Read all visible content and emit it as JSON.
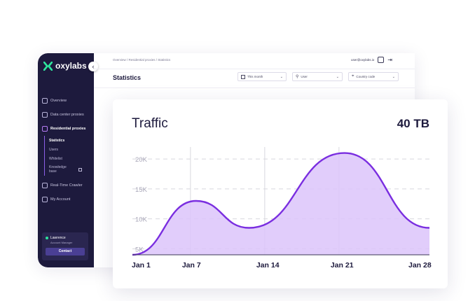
{
  "sidebar": {
    "logo_text": "oxylabs",
    "collapse_glyph": "‹",
    "items": [
      {
        "label": "Overview",
        "icon": "home-icon"
      },
      {
        "label": "Data center proxies",
        "icon": "server-icon"
      },
      {
        "label": "Residential proxies",
        "icon": "house-icon"
      }
    ],
    "sub_items": [
      {
        "label": "Statistics"
      },
      {
        "label": "Users"
      },
      {
        "label": "Whitelist"
      },
      {
        "label": "Knowledge base"
      }
    ],
    "more_items": [
      {
        "label": "Real-Time Crawler",
        "icon": "crawler-icon"
      },
      {
        "label": "My Account",
        "icon": "user-icon"
      }
    ],
    "user": {
      "name": "Lawrence",
      "role": "Account Manager",
      "contact_label": "Contact"
    }
  },
  "header": {
    "breadcrumb": "Overview  /  Residential proxies  /  Statistics",
    "email": "user@oxylabs.io",
    "title": "Statistics",
    "filters": [
      {
        "label": "This month",
        "icon": "calendar-icon"
      },
      {
        "label": "User",
        "icon": "user-icon"
      },
      {
        "label": "Country code",
        "icon": "location-icon"
      }
    ]
  },
  "card": {
    "title": "Traffic",
    "total": "40 TB"
  },
  "chart_data": {
    "type": "area",
    "x_ticks": [
      "Jan 1",
      "Jan 7",
      "Jan 14",
      "Jan 21",
      "Jan 28"
    ],
    "y_ticks": [
      "20K",
      "15K",
      "10K",
      "5K"
    ],
    "y_tick_values": [
      20000,
      15000,
      10000,
      5000
    ],
    "ylim": [
      4000,
      22000
    ],
    "xlim": [
      1,
      29
    ],
    "points": [
      [
        1,
        4000
      ],
      [
        7,
        13000
      ],
      [
        12,
        8500
      ],
      [
        21,
        21000
      ],
      [
        29,
        8500
      ]
    ],
    "grid": true,
    "colors": {
      "line": "#7a2ee0",
      "fill": "#dcc4fa",
      "grid": "#d8d8de"
    }
  }
}
